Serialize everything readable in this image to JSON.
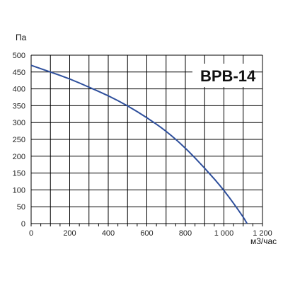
{
  "chart_data": {
    "type": "line",
    "title": "BPB-14",
    "ylabel": "Па",
    "xlabel": "м3/час",
    "xlim": [
      0,
      1200
    ],
    "ylim": [
      0,
      500
    ],
    "x_ticks": [
      0,
      200,
      400,
      600,
      800,
      1000,
      1200
    ],
    "x_tick_labels": [
      "0",
      "200",
      "400",
      "600",
      "800",
      "1 000",
      "1 200"
    ],
    "y_ticks": [
      0,
      50,
      100,
      150,
      200,
      250,
      300,
      350,
      400,
      450,
      500
    ],
    "y_tick_labels": [
      "0",
      "50",
      "100",
      "150",
      "200",
      "250",
      "300",
      "350",
      "400",
      "450",
      "500"
    ],
    "grid": true,
    "series": [
      {
        "color": "#2e4f9c",
        "x": [
          0,
          100,
          200,
          300,
          400,
          500,
          600,
          700,
          800,
          900,
          1000,
          1100,
          1120
        ],
        "y": [
          470,
          450,
          430,
          405,
          380,
          350,
          315,
          275,
          225,
          165,
          100,
          20,
          0
        ]
      }
    ]
  }
}
